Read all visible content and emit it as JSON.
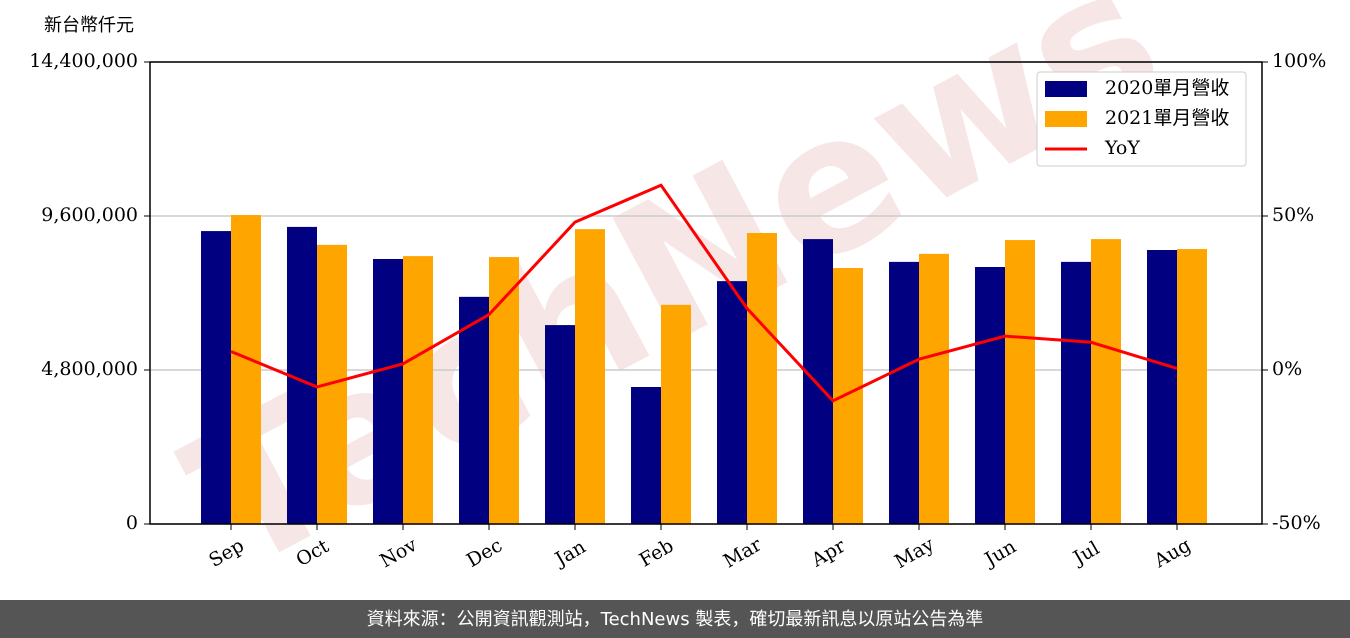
{
  "chart_data": {
    "type": "bar_line",
    "y_axis_label": "新台幣仟元",
    "categories": [
      "Sep",
      "Oct",
      "Nov",
      "Dec",
      "Jan",
      "Feb",
      "Mar",
      "Apr",
      "May",
      "Jun",
      "Jul",
      "Aug"
    ],
    "series": [
      {
        "name": "2020單月營收",
        "color": "#000080",
        "values": [
          9130000,
          9260000,
          8260000,
          7080000,
          6200000,
          4270000,
          7570000,
          8880000,
          8170000,
          8010000,
          8170000,
          8540000
        ]
      },
      {
        "name": "2021單月營收",
        "color": "#ffa500",
        "values": [
          9630000,
          8700000,
          8350000,
          8320000,
          9190000,
          6830000,
          9070000,
          7980000,
          8420000,
          8850000,
          8880000,
          8570000
        ]
      },
      {
        "name": "YoY",
        "color": "#ff0000",
        "axis": "y2",
        "values": [
          6,
          -5.5,
          2,
          18,
          48,
          60,
          20,
          -10,
          3.5,
          11,
          9,
          0.5
        ]
      }
    ],
    "ylim": [
      0,
      14400000
    ],
    "yticks": [
      0,
      {
        "value": 4800000,
        "label": "4,800,000"
      },
      {
        "value": 9600000,
        "label": "9,600,000"
      },
      {
        "value": 14400000,
        "label": "14,400,000"
      }
    ],
    "y2lim": [
      -50,
      100
    ],
    "y2ticks": [
      {
        "value": -50,
        "label": "-50%"
      },
      {
        "value": 0,
        "label": "0%"
      },
      {
        "value": 50,
        "label": "50%"
      },
      {
        "value": 100,
        "label": "100%"
      }
    ],
    "grid": true,
    "legend": "upper right",
    "watermark": "TechNews",
    "footer": "資料來源：公開資訊觀測站，TechNews 製表，確切最新訊息以原站公告為準"
  }
}
